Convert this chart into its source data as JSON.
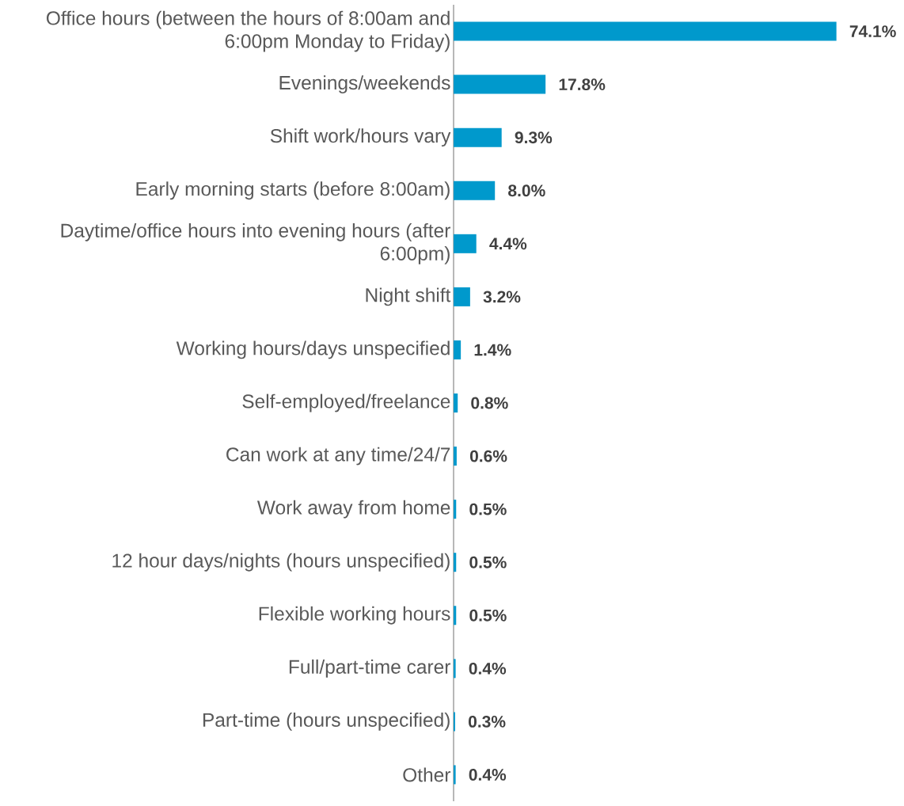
{
  "chart_data": {
    "type": "bar",
    "orientation": "horizontal",
    "color": "#0099cc",
    "tick_labels": "y",
    "categories": [
      "Office hours (between the hours of 8:00am and 6:00pm Monday to Friday)",
      "Evenings/weekends",
      "Shift work/hours vary",
      "Early morning starts (before 8:00am)",
      "Daytime/office hours into evening hours (after 6:00pm)",
      "Night shift",
      "Working hours/days unspecified",
      "Self-employed/freelance",
      "Can work at any time/24/7",
      "Work away from home",
      "12 hour days/nights (hours unspecified)",
      "Flexible working hours",
      "Full/part-time carer",
      "Part-time (hours unspecified)",
      "Other"
    ],
    "values": [
      74.1,
      17.8,
      9.3,
      8.0,
      4.4,
      3.2,
      1.4,
      0.8,
      0.6,
      0.5,
      0.5,
      0.5,
      0.4,
      0.3,
      0.4
    ],
    "value_labels": [
      "74.1%",
      "17.8%",
      "9.3%",
      "8.0%",
      "4.4%",
      "3.2%",
      "1.4%",
      "0.8%",
      "0.6%",
      "0.5%",
      "0.5%",
      "0.5%",
      "0.4%",
      "0.3%",
      "0.4%"
    ]
  }
}
